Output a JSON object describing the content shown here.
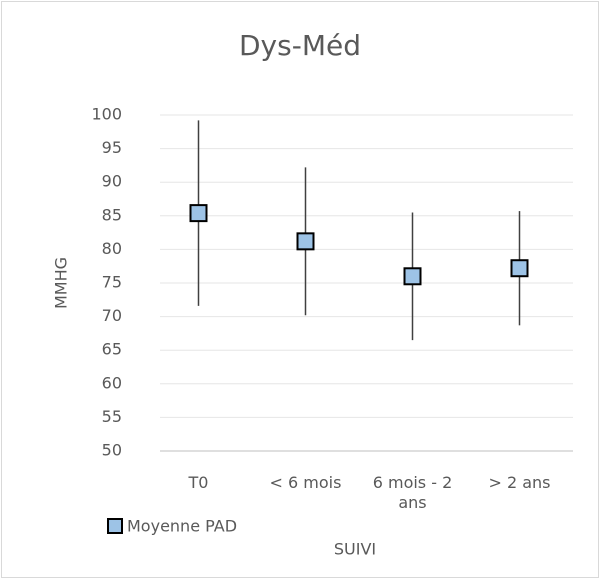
{
  "chart_data": {
    "type": "errorbar",
    "title": "Dys-Méd",
    "categories": [
      "T0",
      "< 6 mois",
      "6 mois - 2 ans",
      "> 2 ans"
    ],
    "series": [
      {
        "name": "Moyenne PAD",
        "color": "#9dc3e6",
        "values": [
          85.4,
          81.2,
          76,
          77.2
        ],
        "errors": [
          13.8,
          11,
          9.5,
          8.5
        ]
      }
    ],
    "ylim": [
      50,
      100
    ],
    "yticks": [
      50,
      55,
      60,
      65,
      70,
      75,
      80,
      85,
      90,
      95,
      100
    ],
    "y_label": "MMHG",
    "x_label": "SUIVI",
    "grid": true,
    "legend": "bottom-left"
  }
}
